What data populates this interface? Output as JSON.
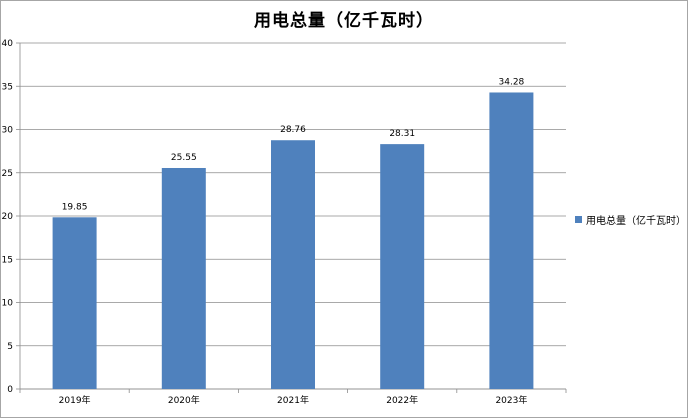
{
  "chart_data": {
    "type": "bar",
    "title": "用电总量（亿千瓦时）",
    "categories": [
      "2019年",
      "2020年",
      "2021年",
      "2022年",
      "2023年"
    ],
    "series": [
      {
        "name": "用电总量（亿千瓦时）",
        "values": [
          19.85,
          25.55,
          28.76,
          28.31,
          34.28
        ],
        "color": "#4f81bd"
      }
    ],
    "data_labels": [
      "19.85",
      "25.55",
      "28.76",
      "28.31",
      "34.28"
    ],
    "xlabel": "",
    "ylabel": "",
    "ylim": [
      0,
      40
    ],
    "yticks": [
      0,
      5,
      10,
      15,
      20,
      25,
      30,
      35,
      40
    ],
    "grid": true,
    "legend_position": "right"
  }
}
